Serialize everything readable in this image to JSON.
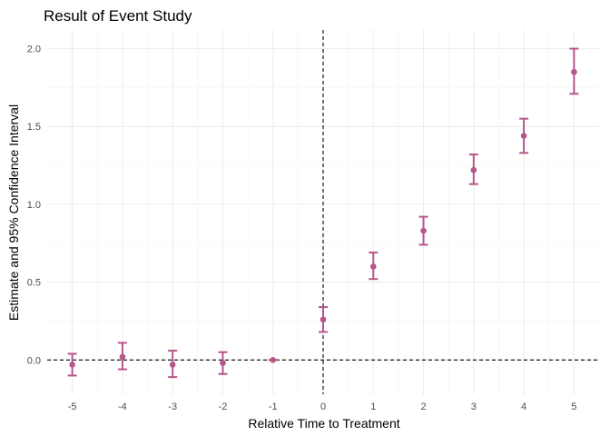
{
  "chart_data": {
    "type": "scatter",
    "title": "Result of Event Study",
    "xlabel": "Relative Time to Treatment",
    "ylabel": "Estimate and 95% Confidence Interval",
    "xlim": [
      -5.5,
      5.5
    ],
    "ylim": [
      -0.22,
      2.12
    ],
    "x_ticks": [
      -5,
      -4,
      -3,
      -2,
      -1,
      0,
      1,
      2,
      3,
      4,
      5
    ],
    "x_tick_labels": [
      "-5",
      "-4",
      "-3",
      "-2",
      "-1",
      "0",
      "1",
      "2",
      "3",
      "4",
      "5"
    ],
    "y_ticks": [
      0,
      0.5,
      1,
      1.5,
      2
    ],
    "y_tick_labels": [
      "0.0",
      "0.5",
      "1.0",
      "1.5",
      "2.0"
    ],
    "grid": true,
    "reference_lines": {
      "x": 0,
      "y": 0
    },
    "color": "#b5578a",
    "points": [
      {
        "x": -5,
        "estimate": -0.03,
        "lower": -0.1,
        "upper": 0.04
      },
      {
        "x": -4,
        "estimate": 0.02,
        "lower": -0.06,
        "upper": 0.11
      },
      {
        "x": -3,
        "estimate": -0.03,
        "lower": -0.11,
        "upper": 0.06
      },
      {
        "x": -2,
        "estimate": -0.02,
        "lower": -0.09,
        "upper": 0.05
      },
      {
        "x": -1,
        "estimate": 0.0,
        "lower": 0.0,
        "upper": 0.0
      },
      {
        "x": 0,
        "estimate": 0.26,
        "lower": 0.18,
        "upper": 0.34
      },
      {
        "x": 1,
        "estimate": 0.6,
        "lower": 0.52,
        "upper": 0.69
      },
      {
        "x": 2,
        "estimate": 0.83,
        "lower": 0.74,
        "upper": 0.92
      },
      {
        "x": 3,
        "estimate": 1.22,
        "lower": 1.13,
        "upper": 1.32
      },
      {
        "x": 4,
        "estimate": 1.44,
        "lower": 1.33,
        "upper": 1.55
      },
      {
        "x": 5,
        "estimate": 1.85,
        "lower": 1.71,
        "upper": 2.0
      }
    ]
  }
}
